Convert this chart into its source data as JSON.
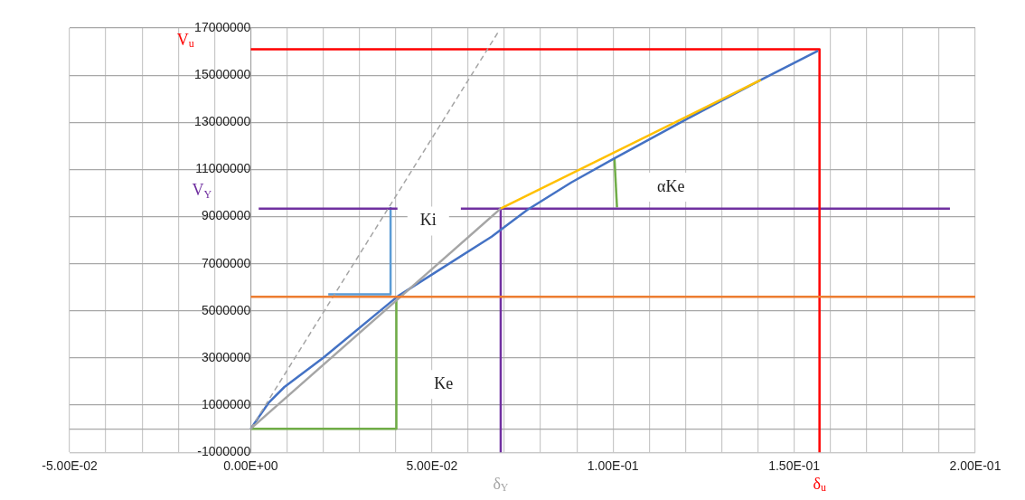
{
  "chart_data": {
    "type": "line",
    "xlim": [
      -0.05,
      0.2
    ],
    "xticks": [
      {
        "value": -0.05,
        "label": "-5.00E-02"
      },
      {
        "value": -0.04,
        "label": null
      },
      {
        "value": -0.03,
        "label": null
      },
      {
        "value": -0.02,
        "label": null
      },
      {
        "value": -0.01,
        "label": null
      },
      {
        "value": 0,
        "label": "0.00E+00"
      },
      {
        "value": 0.01,
        "label": null
      },
      {
        "value": 0.02,
        "label": null
      },
      {
        "value": 0.03,
        "label": null
      },
      {
        "value": 0.04,
        "label": null
      },
      {
        "value": 0.05,
        "label": "5.00E-02"
      },
      {
        "value": 0.06,
        "label": null
      },
      {
        "value": 0.07,
        "label": null
      },
      {
        "value": 0.08,
        "label": null
      },
      {
        "value": 0.09,
        "label": null
      },
      {
        "value": 0.1,
        "label": "1.00E-01"
      },
      {
        "value": 0.11,
        "label": null
      },
      {
        "value": 0.12,
        "label": null
      },
      {
        "value": 0.13,
        "label": null
      },
      {
        "value": 0.14,
        "label": null
      },
      {
        "value": 0.15,
        "label": "1.50E-01"
      },
      {
        "value": 0.16,
        "label": null
      },
      {
        "value": 0.17,
        "label": null
      },
      {
        "value": 0.18,
        "label": null
      },
      {
        "value": 0.19,
        "label": null
      },
      {
        "value": 0.2,
        "label": "2.00E-01"
      }
    ],
    "ylim": [
      -1000000,
      17000000
    ],
    "yticks": [
      -1000000,
      {
        "value": 0,
        "label": null
      },
      1000000,
      3000000,
      5000000,
      7000000,
      9000000,
      11000000,
      13000000,
      15000000,
      17000000
    ],
    "grid": true,
    "marker": "none",
    "series": [
      {
        "color": "#ed7d31",
        "x": [
          0,
          0.2
        ],
        "values": [
          5600000,
          5600000
        ]
      },
      {
        "color": "#a5a5a5",
        "line_style": "dashed",
        "x": [
          0,
          0.0686
        ],
        "values": [
          0,
          16900000
        ]
      },
      {
        "color": "#a5a5a5",
        "x": [
          0,
          0.069
        ],
        "values": [
          0,
          9340000
        ]
      },
      {
        "color": "#ffc000",
        "x": [
          0.069,
          0.1408
        ],
        "values": [
          9340000,
          14800000
        ]
      },
      {
        "color": "#4472c4",
        "x": [
          0,
          0.0049,
          0.0093,
          0.02,
          0.0406,
          0.0665,
          0.0763,
          0.0885,
          0.1004,
          0.1205,
          0.1408,
          0.1566
        ],
        "values": [
          0,
          1090000,
          1770000,
          3010000,
          5620000,
          8150000,
          9280000,
          10450000,
          11470000,
          13150000,
          14800000,
          16040000
        ]
      },
      {
        "color": "#ff0000",
        "x": [
          0,
          0.157,
          0.157
        ],
        "values": [
          16100000,
          16100000,
          -1000000
        ]
      },
      {
        "color": "#7030a0",
        "x": [
          0.0022,
          0.0405,
          0.049,
          0.058,
          0.193
        ],
        "values": [
          9340000,
          9340000,
          null,
          9340000,
          9340000
        ]
      },
      {
        "color": "#7030a0",
        "x": [
          0.069,
          0.069
        ],
        "values": [
          9340000,
          -1000000
        ]
      },
      {
        "color": "#5b9bd5",
        "x": [
          0.0214,
          0.0386,
          0.0386
        ],
        "values": [
          5700000,
          5700000,
          9400000
        ]
      },
      {
        "color": "#70ad47",
        "x": [
          0,
          0.0402,
          0.0402
        ],
        "values": [
          0,
          0,
          5430000
        ]
      },
      {
        "color": "#70ad47",
        "x": [
          0.1004,
          0.1011
        ],
        "values": [
          11470000,
          9390000
        ]
      }
    ],
    "annotations": [
      "V$_{u}$",
      "V$_{Y}$",
      "Ki",
      "Ke",
      "αKe",
      {
        "text": "δ$_{Y}$",
        "x": 0.069,
        "y": -1000000
      },
      {
        "text": "δ$_{u}$",
        "x": 0.157,
        "y": -1000000
      }
    ]
  }
}
